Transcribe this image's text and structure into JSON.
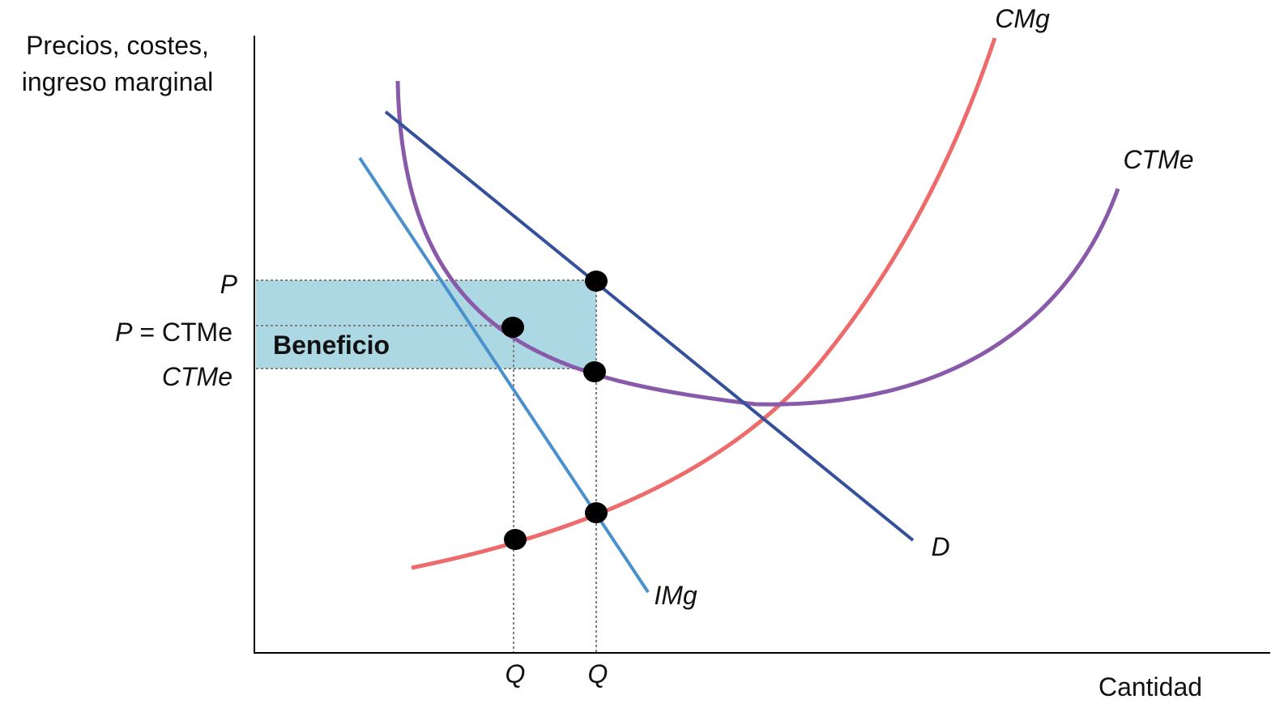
{
  "axes": {
    "y_label_line1": "Precios, costes,",
    "y_label_line2": "ingreso marginal",
    "x_label": "Cantidad"
  },
  "price_labels": {
    "p": "P",
    "p_eq_ctme_prefix": "P",
    "p_eq_ctme_suffix": " = CTMe",
    "ctme": "CTMe"
  },
  "quantity_labels": {
    "q1": "Q",
    "q2": "Q"
  },
  "region": {
    "label": "Beneficio"
  },
  "curves": {
    "cmg": {
      "label": "CMg"
    },
    "ctme": {
      "label": "CTMe"
    },
    "demand": {
      "label": "D"
    },
    "img": {
      "label": "IMg"
    }
  },
  "colors": {
    "cmg": "#ee6b6b",
    "ctme": "#8a5aaa",
    "demand": "#34509a",
    "img": "#4a90cc",
    "profit_area": "#acd8e4",
    "guides": "#7f7f7f",
    "points": "#000000"
  }
}
